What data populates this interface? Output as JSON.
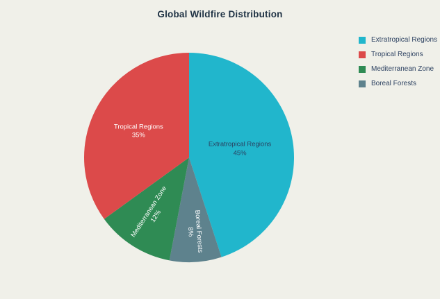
{
  "chart_data": {
    "type": "pie",
    "title": "Global Wildfire Distribution",
    "slices": [
      {
        "label": "Extratropical Regions",
        "value": 45,
        "pct_label": "45%",
        "color": "#21b6cc",
        "text_color": "#2a3f5f",
        "label_rotation": 0,
        "label_radius_frac": 0.49
      },
      {
        "label": "Tropical Regions",
        "value": 35,
        "pct_label": "35%",
        "color": "#dc4a4a",
        "text_color": "#ffffff",
        "label_rotation": 0,
        "label_radius_frac": 0.54
      },
      {
        "label": "Mediterranean Zone",
        "value": 12,
        "pct_label": "12%",
        "color": "#2f8b54",
        "text_color": "#ffffff",
        "label_rotation": -57,
        "label_radius_frac": 0.64
      },
      {
        "label": "Boreal Forests",
        "value": 8,
        "pct_label": "8%",
        "color": "#5e828d",
        "text_color": "#ffffff",
        "label_rotation": 86,
        "label_radius_frac": 0.71
      }
    ],
    "clockwise_order": [
      "Extratropical Regions",
      "Boreal Forests",
      "Mediterranean Zone",
      "Tropical Regions"
    ],
    "start_angle": 0,
    "legend_position": "top-right",
    "legend_entries": [
      "Extratropical Regions",
      "Tropical Regions",
      "Mediterranean Zone",
      "Boreal Forests"
    ],
    "background_color": "#f0f0e9",
    "title_color": "#203345",
    "legend_text_color": "#2a3f5f"
  }
}
